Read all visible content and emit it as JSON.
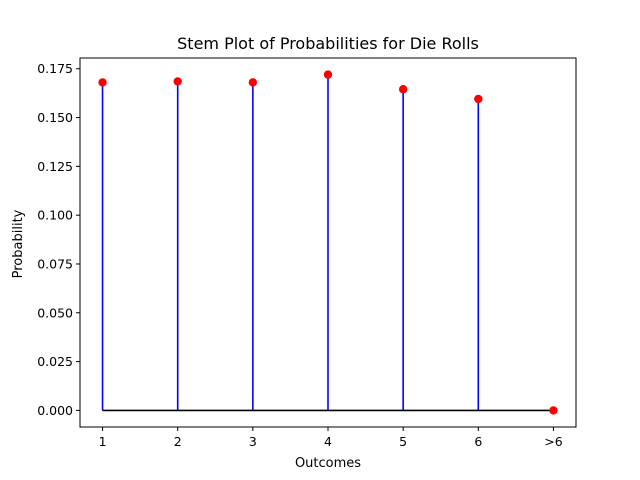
{
  "chart_data": {
    "type": "stem",
    "title": "Stem Plot of Probabilities for Die Rolls",
    "xlabel": "Outcomes",
    "ylabel": "Probability",
    "categories": [
      "1",
      "2",
      "3",
      "4",
      "5",
      "6",
      ">6"
    ],
    "values": [
      0.168,
      0.1685,
      0.168,
      0.172,
      0.1645,
      0.1595,
      0.0
    ],
    "ylim": [
      -0.0085,
      0.1805
    ],
    "yticks": [
      0.0,
      0.025,
      0.05,
      0.075,
      0.1,
      0.125,
      0.15,
      0.175
    ],
    "ytick_labels": [
      "0.000",
      "0.025",
      "0.050",
      "0.075",
      "0.100",
      "0.125",
      "0.150",
      "0.175"
    ],
    "grid": false,
    "colors": {
      "stem": "#0000ff",
      "marker": "#ff0000",
      "baseline": "#000000"
    }
  }
}
